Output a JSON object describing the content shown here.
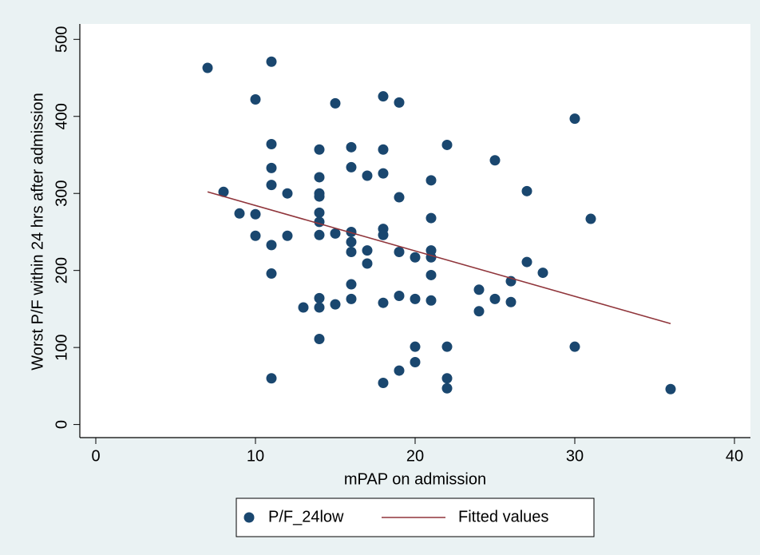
{
  "chart_data": {
    "type": "scatter",
    "x_label": "mPAP on admission",
    "y_label": "Worst P/F within 24 hrs after admission",
    "xlim": [
      -1,
      41
    ],
    "ylim": [
      -17,
      520
    ],
    "xticks": [
      0,
      10,
      20,
      30,
      40
    ],
    "yticks": [
      0,
      100,
      200,
      300,
      400,
      500
    ],
    "legend": "bottom",
    "series": [
      {
        "name": "P/F_24low",
        "type": "scatter",
        "color": "#1a476f",
        "x": [
          7,
          11,
          10,
          15,
          18,
          19,
          30,
          11,
          14,
          16,
          18,
          22,
          25,
          11,
          16,
          17,
          18,
          21,
          11,
          14,
          8,
          12,
          14,
          14,
          19,
          27,
          9,
          10,
          14,
          14,
          21,
          31,
          10,
          11,
          12,
          14,
          15,
          16,
          16,
          18,
          18,
          16,
          17,
          17,
          19,
          20,
          21,
          21,
          27,
          28,
          11,
          21,
          26,
          16,
          14,
          16,
          13,
          14,
          15,
          18,
          19,
          20,
          21,
          24,
          25,
          26,
          24,
          14,
          20,
          22,
          30,
          20,
          19,
          11,
          22,
          18,
          22,
          36
        ],
        "values": [
          463,
          471,
          422,
          417,
          426,
          418,
          397,
          364,
          357,
          360,
          357,
          363,
          343,
          333,
          334,
          323,
          326,
          317,
          311,
          321,
          302,
          300,
          300,
          296,
          295,
          303,
          274,
          273,
          275,
          263,
          268,
          267,
          245,
          233,
          245,
          246,
          248,
          250,
          237,
          254,
          246,
          224,
          226,
          209,
          224,
          217,
          226,
          217,
          211,
          197,
          196,
          194,
          186,
          182,
          164,
          163,
          152,
          152,
          156,
          158,
          167,
          163,
          161,
          175,
          163,
          159,
          147,
          111,
          101,
          101,
          101,
          81,
          70,
          60,
          60,
          54,
          47,
          46
        ]
      },
      {
        "name": "Fitted values",
        "type": "line",
        "color": "#90353b",
        "x": [
          7,
          36
        ],
        "values": [
          302,
          131
        ]
      }
    ]
  }
}
